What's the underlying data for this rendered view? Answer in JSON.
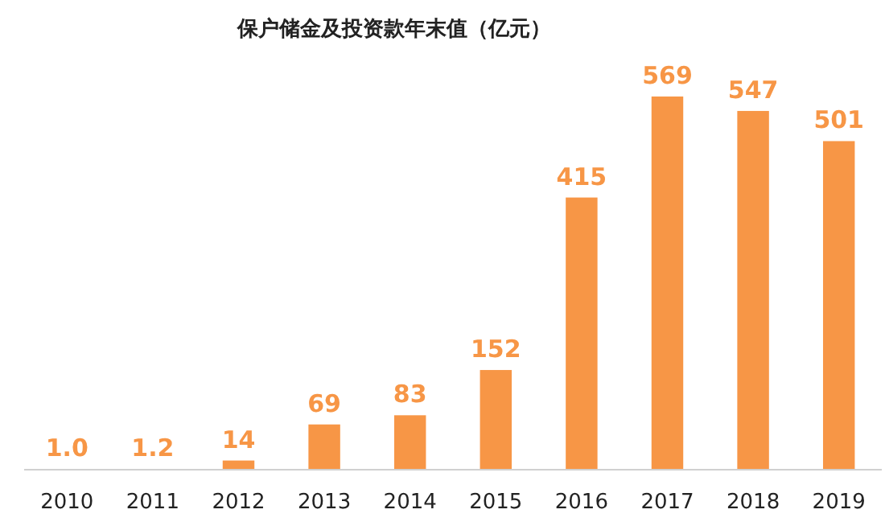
{
  "chart_data": {
    "type": "bar",
    "title": "保户储金及投资款年末值（亿元）",
    "categories": [
      "2010",
      "2011",
      "2012",
      "2013",
      "2014",
      "2015",
      "2016",
      "2017",
      "2018",
      "2019"
    ],
    "values": [
      1.0,
      1.2,
      14,
      69,
      83,
      152,
      415,
      569,
      547,
      501
    ],
    "value_labels": [
      "1.0",
      "1.2",
      "14",
      "69",
      "83",
      "152",
      "415",
      "569",
      "547",
      "501"
    ],
    "color": "#f79646"
  }
}
